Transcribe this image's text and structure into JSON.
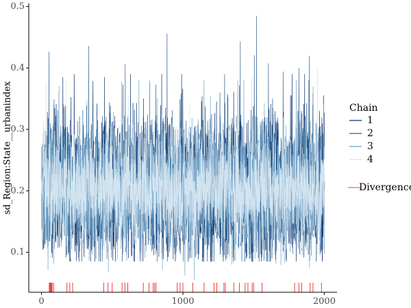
{
  "chart_data": {
    "type": "line",
    "title": "",
    "xlabel": "",
    "ylabel": "sd_Region:State__urbanindex",
    "xlim": [
      -90,
      2090
    ],
    "ylim": [
      0.035,
      0.505
    ],
    "x_ticks": [
      0,
      1000,
      2000
    ],
    "x_tick_labels": [
      "0",
      "1000",
      "2000"
    ],
    "y_ticks": [
      0.1,
      0.2,
      0.3,
      0.4,
      0.5
    ],
    "y_tick_labels": [
      "0.1",
      "0.2",
      "0.3",
      "0.4",
      "0.5"
    ],
    "grid": false,
    "legend_position": "right",
    "legend_title": "Chain",
    "iterations": 2000,
    "series": [
      {
        "name": "1",
        "color": "#08306b",
        "mean": 0.205,
        "sd": 0.055,
        "min": 0.085,
        "max": 0.39,
        "spikes": [
          [
            150,
            0.385
          ],
          [
            990,
            0.39
          ],
          [
            1860,
            0.39
          ]
        ]
      },
      {
        "name": "2",
        "color": "#2c5d8f",
        "mean": 0.205,
        "sd": 0.055,
        "min": 0.085,
        "max": 0.485,
        "spikes": [
          [
            1520,
            0.485
          ],
          [
            1890,
            0.38
          ],
          [
            1820,
            0.4
          ]
        ]
      },
      {
        "name": "3",
        "color": "#6fa3c6",
        "mean": 0.2,
        "sd": 0.05,
        "min": 0.055,
        "max": 0.38,
        "spikes": [
          [
            1080,
            0.055
          ],
          [
            1920,
            0.37
          ]
        ]
      },
      {
        "name": "4",
        "color": "#d3e4f0",
        "mean": 0.2,
        "sd": 0.045,
        "min": 0.09,
        "max": 0.4,
        "spikes": [
          [
            1950,
            0.4
          ]
        ]
      }
    ],
    "divergence": {
      "label": "Divergence",
      "color": "#f03b3b",
      "x": [
        55,
        60,
        65,
        70,
        75,
        85,
        180,
        200,
        220,
        440,
        470,
        500,
        570,
        590,
        610,
        720,
        760,
        790,
        800,
        810,
        960,
        980,
        1000,
        1070,
        1150,
        1220,
        1240,
        1290,
        1300,
        1360,
        1400,
        1440,
        1460,
        1490,
        1500,
        1560,
        1790,
        1820,
        1840,
        1900,
        1920,
        1980
      ]
    }
  }
}
